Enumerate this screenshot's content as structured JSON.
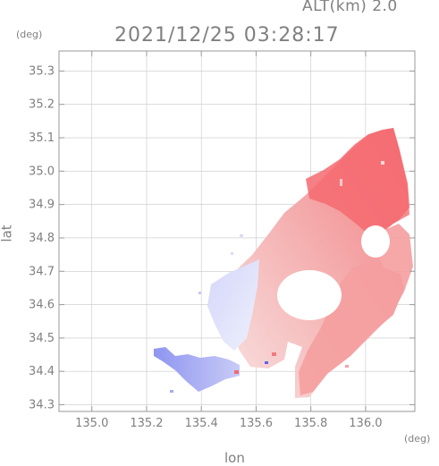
{
  "header": {
    "altitude_label": "ALT(km)  2.0",
    "timestamp": "2021/12/25  03:28:17"
  },
  "axes": {
    "y_unit": "(deg)",
    "x_unit": "(deg)",
    "y_label": "lat",
    "x_label": "lon",
    "x_ticks": [
      "135.0",
      "135.2",
      "135.4",
      "135.6",
      "135.8",
      "136.0"
    ],
    "y_ticks": [
      "34.3",
      "34.4",
      "34.5",
      "34.6",
      "34.7",
      "34.8",
      "34.9",
      "35.0",
      "35.1",
      "35.2",
      "35.3"
    ]
  },
  "colors": {
    "frame": "#9a9a9a",
    "grid": "#c8c8c8",
    "text": "#808080",
    "approaching": "#6f74ee",
    "receding": "#f25f66"
  },
  "chart_data": {
    "type": "heatmap",
    "description_type": "doppler radar velocity field",
    "xlim": [
      134.88,
      136.18
    ],
    "ylim": [
      34.28,
      35.36
    ],
    "xticks": [
      135.0,
      135.2,
      135.4,
      135.6,
      135.8,
      136.0
    ],
    "yticks": [
      34.3,
      34.4,
      34.5,
      34.6,
      34.7,
      34.8,
      34.9,
      35.0,
      35.1,
      35.2,
      35.3
    ],
    "grid": true,
    "regions": [
      {
        "name": "southwest-approaching-blue",
        "color": "#aab0f4",
        "lon_range": [
          135.21,
          135.45
        ],
        "lat_range": [
          34.34,
          34.47
        ]
      },
      {
        "name": "west-light-blue",
        "color": "#dadcf8",
        "lon_range": [
          135.4,
          135.56
        ],
        "lat_range": [
          34.49,
          34.7
        ]
      },
      {
        "name": "central-light-red",
        "color": "#f5cccc",
        "lon_range": [
          135.5,
          135.75
        ],
        "lat_range": [
          34.4,
          34.8
        ]
      },
      {
        "name": "north-receding-red",
        "color": "#f47f82",
        "lon_range": [
          135.78,
          136.12
        ],
        "lat_range": [
          34.85,
          35.14
        ]
      },
      {
        "name": "east-receding-red",
        "color": "#f4a3a3",
        "lon_range": [
          135.65,
          136.15
        ],
        "lat_range": [
          34.32,
          34.75
        ]
      }
    ]
  }
}
